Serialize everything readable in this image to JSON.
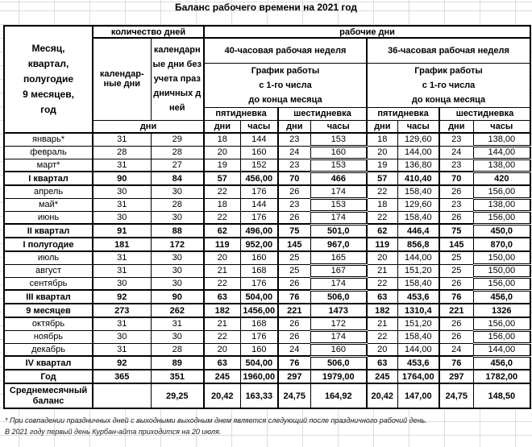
{
  "title": "Баланс рабочего времени на 2021 год",
  "header": {
    "corner_label": "Месяц,\nквартал,\nполугодие\n9 месяцев,\nгод",
    "qty_days": "количество дней",
    "work_days": "рабочие дни",
    "calendar_days": "календар-\nные дни",
    "calendar_days_wo_holidays": "календарные дни без учета праздничных дней",
    "week_40": "40-часовая рабочая неделя",
    "week_36": "36-часовая рабочая неделя",
    "schedule": "График работы\nс 1-го числа\nдо конца месяца",
    "five_day": "пятидневка",
    "six_day": "шестидневка",
    "days_unit": "дни",
    "hours_unit": "часы"
  },
  "rows": [
    {
      "type": "month",
      "label": "январь*",
      "values": [
        "31",
        "29",
        "18",
        "144",
        "23",
        "153",
        "18",
        "129,60",
        "23",
        "138,00"
      ]
    },
    {
      "type": "month",
      "label": "февраль",
      "values": [
        "28",
        "28",
        "20",
        "160",
        "24",
        "160",
        "20",
        "144,00",
        "24",
        "144,00"
      ]
    },
    {
      "type": "month",
      "label": "март*",
      "values": [
        "31",
        "27",
        "19",
        "152",
        "23",
        "153",
        "19",
        "136,80",
        "23",
        "138,00"
      ]
    },
    {
      "type": "total",
      "label": "I квартал",
      "values": [
        "90",
        "84",
        "57",
        "456,00",
        "70",
        "466",
        "57",
        "410,40",
        "70",
        "420"
      ]
    },
    {
      "type": "month",
      "label": "апрель",
      "values": [
        "30",
        "30",
        "22",
        "176",
        "26",
        "174",
        "22",
        "158,40",
        "26",
        "156,00"
      ]
    },
    {
      "type": "month",
      "label": "май*",
      "values": [
        "31",
        "28",
        "18",
        "144",
        "23",
        "153",
        "18",
        "129,60",
        "23",
        "138,00"
      ]
    },
    {
      "type": "month",
      "label": "июнь",
      "values": [
        "30",
        "30",
        "22",
        "176",
        "26",
        "174",
        "22",
        "158,40",
        "26",
        "156,00"
      ]
    },
    {
      "type": "total",
      "label": "II квартал",
      "values": [
        "91",
        "88",
        "62",
        "496,00",
        "75",
        "501,0",
        "62",
        "446,4",
        "75",
        "450,0"
      ]
    },
    {
      "type": "total",
      "label": "I полугодие",
      "values": [
        "181",
        "172",
        "119",
        "952,00",
        "145",
        "967,0",
        "119",
        "856,8",
        "145",
        "870,0"
      ]
    },
    {
      "type": "month",
      "label": "июль",
      "values": [
        "31",
        "30",
        "20",
        "160",
        "25",
        "165",
        "20",
        "144,00",
        "25",
        "150,00"
      ]
    },
    {
      "type": "month",
      "label": "август",
      "values": [
        "31",
        "30",
        "21",
        "168",
        "25",
        "167",
        "21",
        "151,20",
        "25",
        "150,00"
      ]
    },
    {
      "type": "month",
      "label": "сентябрь",
      "values": [
        "30",
        "30",
        "22",
        "176",
        "26",
        "174",
        "22",
        "158,40",
        "26",
        "156,00"
      ]
    },
    {
      "type": "total",
      "label": "III квартал",
      "values": [
        "92",
        "90",
        "63",
        "504,00",
        "76",
        "506,0",
        "63",
        "453,6",
        "76",
        "456,0"
      ]
    },
    {
      "type": "total",
      "label": "9 месяцев",
      "values": [
        "273",
        "262",
        "182",
        "1456,00",
        "221",
        "1473",
        "182",
        "1310,4",
        "221",
        "1326"
      ]
    },
    {
      "type": "month",
      "label": "октябрь",
      "values": [
        "31",
        "31",
        "21",
        "168",
        "26",
        "172",
        "21",
        "151,20",
        "26",
        "156,00"
      ]
    },
    {
      "type": "month",
      "label": "ноябрь",
      "values": [
        "30",
        "30",
        "22",
        "176",
        "26",
        "174",
        "22",
        "158,40",
        "26",
        "156,00"
      ]
    },
    {
      "type": "month",
      "label": "декабрь",
      "values": [
        "31",
        "28",
        "20",
        "160",
        "24",
        "160",
        "20",
        "144,00",
        "24",
        "144,00"
      ]
    },
    {
      "type": "total",
      "label": "IV квартал",
      "values": [
        "92",
        "89",
        "63",
        "504,00",
        "76",
        "506,0",
        "63",
        "453,6",
        "76",
        "456,0"
      ]
    },
    {
      "type": "total",
      "label": "Год",
      "values": [
        "365",
        "351",
        "245",
        "1960,00",
        "297",
        "1979,00",
        "245",
        "1764,00",
        "297",
        "1782,00"
      ]
    },
    {
      "type": "balance",
      "label": "Среднемесячный баланс",
      "values": [
        "",
        "29,25",
        "20,42",
        "163,33",
        "24,75",
        "164,92",
        "20,42",
        "147,00",
        "24,75",
        "148,50"
      ]
    }
  ],
  "footnotes": [
    "* При совпадении праздничных дней с выходными выходным днем является следующий после праздничного рабочий день.",
    "В 2021 году первый день Курбан-айта приходится на 20 июля."
  ],
  "colors": {
    "border": "#000000",
    "gridline": "#dcdcdc",
    "text": "#000000",
    "background": "#ffffff"
  }
}
